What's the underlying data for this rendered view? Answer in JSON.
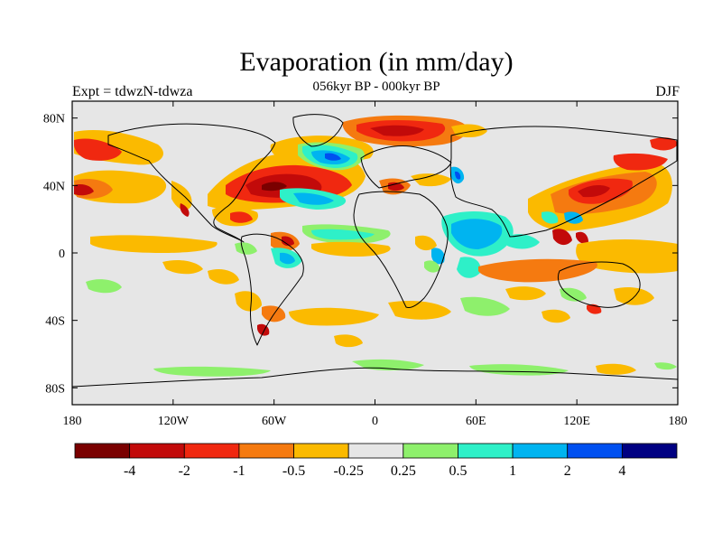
{
  "header": {
    "title": "Evaporation (in mm/day)",
    "subtitle": "056kyr BP - 000kyr BP",
    "left_label": "Expt = tdwzN-tdwza",
    "right_label": "DJF"
  },
  "axes": {
    "x_ticks": [
      {
        "value": -180,
        "label": "180"
      },
      {
        "value": -120,
        "label": "120W"
      },
      {
        "value": -60,
        "label": "60W"
      },
      {
        "value": 0,
        "label": "0"
      },
      {
        "value": 60,
        "label": "60E"
      },
      {
        "value": 120,
        "label": "120E"
      },
      {
        "value": 180,
        "label": "180"
      }
    ],
    "y_ticks": [
      {
        "value": 80,
        "label": "80N"
      },
      {
        "value": 40,
        "label": "40N"
      },
      {
        "value": 0,
        "label": "0"
      },
      {
        "value": -40,
        "label": "40S"
      },
      {
        "value": -80,
        "label": "80S"
      }
    ],
    "xlim": [
      -180,
      180
    ],
    "ylim": [
      -90,
      90
    ]
  },
  "colorbar": {
    "colors": [
      "#7a0000",
      "#c20a0a",
      "#f02810",
      "#f57a10",
      "#fbba00",
      "#e6e6e6",
      "#8ef06c",
      "#2ef0c8",
      "#00b4f0",
      "#0050f0",
      "#000082"
    ],
    "labels": [
      "-4",
      "-2",
      "-1",
      "-0.5",
      "-0.25",
      "0.25",
      "0.5",
      "1",
      "2",
      "4"
    ]
  },
  "field_colors": {
    "background": "#e6e6e6",
    "coast": "#000000"
  }
}
